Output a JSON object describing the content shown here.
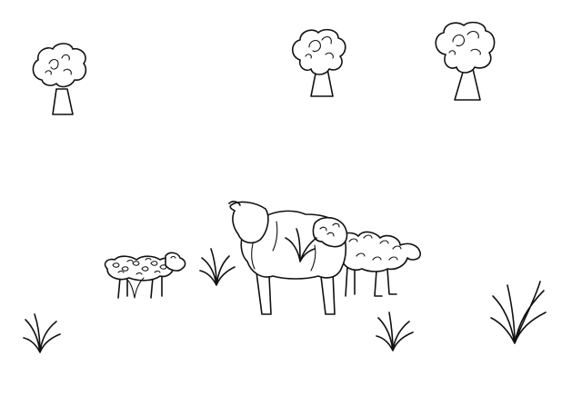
{
  "scene": {
    "style": "black line drawing on white",
    "colors": {
      "background": "#ffffff",
      "ink": "#111111"
    },
    "trees": 3,
    "animals": [
      "sheep",
      "sheep",
      "sheep"
    ],
    "grass_tufts": 5
  }
}
